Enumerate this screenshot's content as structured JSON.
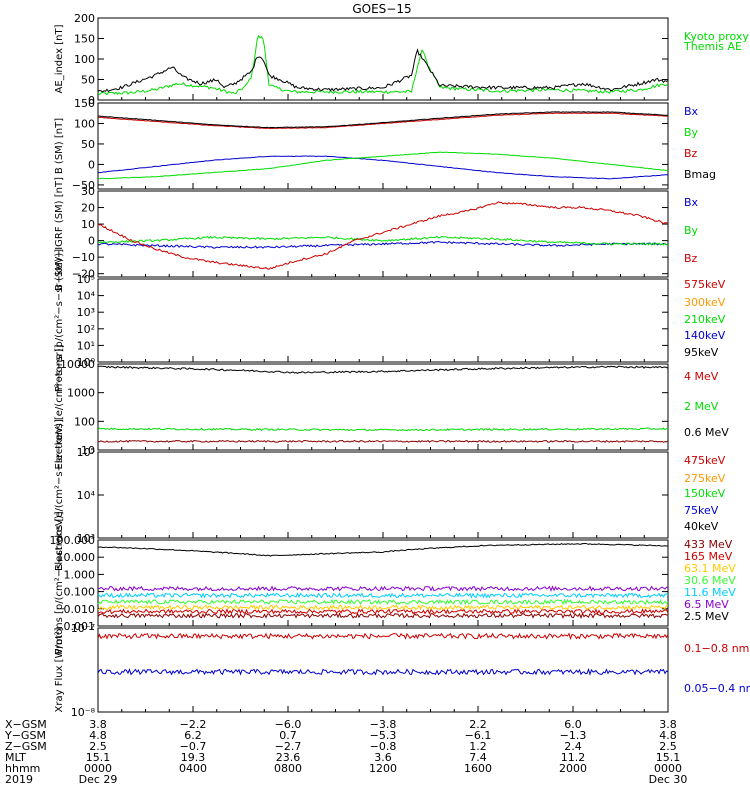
{
  "title": "GOES−15",
  "colors": {
    "black": "#000000",
    "red": "#cc0000",
    "green": "#00dd00",
    "blue": "#0000cc",
    "orange": "#ff9900",
    "cyan": "#00ccff",
    "purple": "#8800cc",
    "gold": "#ffcc00",
    "maroon": "#8b0000",
    "lime": "#33ff33"
  },
  "chart_data": [
    {
      "type": "line",
      "ylabel": "AE_index [nT]",
      "yticks": [
        "0",
        "50",
        "100",
        "150",
        "200"
      ],
      "ylim": [
        0,
        200
      ],
      "series": [
        {
          "name": "Kyoto proxy AE",
          "color": "#00dd00",
          "key": [
            [
              0,
              15
            ],
            [
              0.06,
              18
            ],
            [
              0.1,
              25
            ],
            [
              0.14,
              40
            ],
            [
              0.2,
              30
            ],
            [
              0.24,
              15
            ],
            [
              0.26,
              35
            ],
            [
              0.27,
              60
            ],
            [
              0.28,
              155
            ],
            [
              0.29,
              150
            ],
            [
              0.3,
              40
            ],
            [
              0.31,
              30
            ],
            [
              0.34,
              20
            ],
            [
              0.4,
              20
            ],
            [
              0.5,
              20
            ],
            [
              0.55,
              20
            ],
            [
              0.56,
              80
            ],
            [
              0.57,
              125
            ],
            [
              0.58,
              80
            ],
            [
              0.6,
              30
            ],
            [
              0.7,
              22
            ],
            [
              0.8,
              25
            ],
            [
              0.9,
              20
            ],
            [
              0.95,
              25
            ],
            [
              0.98,
              35
            ],
            [
              1,
              40
            ]
          ]
        },
        {
          "name": "Themis AE",
          "color": "#000000",
          "key": [
            [
              0,
              20
            ],
            [
              0.04,
              30
            ],
            [
              0.07,
              45
            ],
            [
              0.1,
              60
            ],
            [
              0.13,
              80
            ],
            [
              0.15,
              55
            ],
            [
              0.18,
              40
            ],
            [
              0.21,
              50
            ],
            [
              0.22,
              30
            ],
            [
              0.24,
              40
            ],
            [
              0.27,
              70
            ],
            [
              0.28,
              110
            ],
            [
              0.29,
              100
            ],
            [
              0.3,
              60
            ],
            [
              0.32,
              50
            ],
            [
              0.35,
              30
            ],
            [
              0.4,
              25
            ],
            [
              0.5,
              30
            ],
            [
              0.55,
              60
            ],
            [
              0.56,
              120
            ],
            [
              0.57,
              100
            ],
            [
              0.6,
              35
            ],
            [
              0.7,
              30
            ],
            [
              0.8,
              30
            ],
            [
              0.85,
              40
            ],
            [
              0.9,
              25
            ],
            [
              0.95,
              40
            ],
            [
              0.98,
              50
            ],
            [
              1,
              45
            ]
          ]
        }
      ],
      "legend": [
        "Kyoto proxy AE",
        "Themis AE"
      ]
    },
    {
      "type": "line",
      "ylabel": "B (SM) [nT]",
      "yticks": [
        "−50",
        "0",
        "50",
        "100",
        "150"
      ],
      "ylim": [
        -60,
        150
      ],
      "series": [
        {
          "name": "Bx",
          "color": "#0000cc",
          "key": [
            [
              0,
              -20
            ],
            [
              0.1,
              -5
            ],
            [
              0.2,
              10
            ],
            [
              0.3,
              20
            ],
            [
              0.4,
              20
            ],
            [
              0.5,
              10
            ],
            [
              0.6,
              -5
            ],
            [
              0.7,
              -20
            ],
            [
              0.8,
              -30
            ],
            [
              0.9,
              -35
            ],
            [
              1,
              -25
            ]
          ]
        },
        {
          "name": "By",
          "color": "#00dd00",
          "key": [
            [
              0,
              -35
            ],
            [
              0.1,
              -30
            ],
            [
              0.2,
              -20
            ],
            [
              0.3,
              -10
            ],
            [
              0.4,
              10
            ],
            [
              0.5,
              20
            ],
            [
              0.6,
              30
            ],
            [
              0.7,
              25
            ],
            [
              0.8,
              15
            ],
            [
              0.9,
              0
            ],
            [
              1,
              -15
            ]
          ]
        },
        {
          "name": "Bz",
          "color": "#cc0000",
          "key": [
            [
              0,
              115
            ],
            [
              0.1,
              105
            ],
            [
              0.2,
              95
            ],
            [
              0.3,
              88
            ],
            [
              0.4,
              90
            ],
            [
              0.5,
              100
            ],
            [
              0.6,
              110
            ],
            [
              0.7,
              120
            ],
            [
              0.8,
              125
            ],
            [
              0.9,
              125
            ],
            [
              1,
              118
            ]
          ]
        },
        {
          "name": "Bmag",
          "color": "#000000",
          "key": [
            [
              0,
              118
            ],
            [
              0.1,
              108
            ],
            [
              0.2,
              97
            ],
            [
              0.3,
              90
            ],
            [
              0.4,
              92
            ],
            [
              0.5,
              102
            ],
            [
              0.6,
              113
            ],
            [
              0.7,
              123
            ],
            [
              0.8,
              128
            ],
            [
              0.9,
              128
            ],
            [
              1,
              120
            ]
          ]
        }
      ],
      "legend": [
        "Bx",
        "By",
        "Bz",
        "Bmag"
      ]
    },
    {
      "type": "line",
      "ylabel": "B (SM)−IGRF (SM) [nT]",
      "yticks": [
        "−20",
        "−10",
        "0",
        "10",
        "20",
        "30"
      ],
      "ylim": [
        -22,
        30
      ],
      "series": [
        {
          "name": "Bx",
          "color": "#0000cc",
          "key": [
            [
              0,
              -2
            ],
            [
              0.1,
              -3
            ],
            [
              0.2,
              -4
            ],
            [
              0.3,
              -4
            ],
            [
              0.4,
              -3
            ],
            [
              0.5,
              -2
            ],
            [
              0.6,
              -1
            ],
            [
              0.7,
              -2
            ],
            [
              0.8,
              -3
            ],
            [
              0.9,
              -2
            ],
            [
              1,
              -2
            ]
          ]
        },
        {
          "name": "By",
          "color": "#00dd00",
          "key": [
            [
              0,
              -1
            ],
            [
              0.1,
              0
            ],
            [
              0.2,
              2
            ],
            [
              0.3,
              1
            ],
            [
              0.4,
              2
            ],
            [
              0.5,
              0
            ],
            [
              0.6,
              2
            ],
            [
              0.7,
              1
            ],
            [
              0.8,
              -1
            ],
            [
              0.9,
              -2
            ],
            [
              1,
              -2
            ]
          ]
        },
        {
          "name": "Bz",
          "color": "#cc0000",
          "key": [
            [
              0,
              10
            ],
            [
              0.06,
              0
            ],
            [
              0.1,
              -5
            ],
            [
              0.15,
              -10
            ],
            [
              0.2,
              -13
            ],
            [
              0.25,
              -15
            ],
            [
              0.3,
              -17
            ],
            [
              0.35,
              -12
            ],
            [
              0.4,
              -8
            ],
            [
              0.45,
              0
            ],
            [
              0.5,
              5
            ],
            [
              0.55,
              10
            ],
            [
              0.6,
              15
            ],
            [
              0.65,
              18
            ],
            [
              0.7,
              23
            ],
            [
              0.75,
              22
            ],
            [
              0.8,
              20
            ],
            [
              0.85,
              20
            ],
            [
              0.9,
              18
            ],
            [
              0.95,
              15
            ],
            [
              1,
              10
            ]
          ]
        }
      ],
      "legend": [
        "Bx",
        "By",
        "Bz"
      ]
    },
    {
      "type": "line",
      "ylabel": "Protons [p/(cm²−s−sr−keV)]",
      "ylog": [
        0,
        5
      ],
      "yticks": [
        "10⁰",
        "10¹",
        "10²",
        "10³",
        "10⁴",
        "10⁵"
      ],
      "series": [],
      "legend": [
        "575keV",
        "300keV",
        "210keV",
        "140keV",
        "95keV"
      ]
    },
    {
      "type": "line",
      "ylabel": "Electrons [e/(cm²−s−sr)]",
      "ylog": [
        1,
        4
      ],
      "yticks": [
        "10",
        "100",
        "1000",
        "10000"
      ],
      "series": [
        {
          "name": "4 MeV",
          "color": "#8b0000",
          "key": [
            [
              0,
              20
            ],
            [
              0.5,
              20
            ],
            [
              1,
              20
            ]
          ]
        },
        {
          "name": "2 MeV",
          "color": "#00dd00",
          "key": [
            [
              0,
              55
            ],
            [
              0.5,
              50
            ],
            [
              1,
              55
            ]
          ]
        },
        {
          "name": "0.6 MeV",
          "color": "#000000",
          "key": [
            [
              0,
              8000
            ],
            [
              0.2,
              6500
            ],
            [
              0.35,
              5000
            ],
            [
              0.5,
              5500
            ],
            [
              0.7,
              7000
            ],
            [
              0.9,
              8000
            ],
            [
              1,
              7500
            ]
          ]
        }
      ],
      "legend": [
        "4 MeV",
        "2 MeV",
        "0.6 MeV"
      ]
    },
    {
      "type": "line",
      "ylabel": "Electrons [e/(cm²−s−sr−keV)]",
      "ylog": [
        3,
        5
      ],
      "yticks": [
        "10³",
        "10⁴",
        "10⁵"
      ],
      "series": [],
      "legend": [
        "475keV",
        "275keV",
        "150keV",
        "75keV",
        "40keV"
      ]
    },
    {
      "type": "line",
      "ylabel": "Protons [p/(cm²−s−sr−keV)]",
      "ylog": [
        -3,
        2
      ],
      "yticks": [
        "0.001",
        "0.010",
        "0.100",
        "1.000",
        "10.000",
        "100.000"
      ],
      "series": [
        {
          "name": "433 MeV",
          "color": "#8b0000",
          "key": [
            [
              0,
              0.004
            ],
            [
              1,
              0.004
            ]
          ]
        },
        {
          "name": "165 MeV",
          "color": "#cc0000",
          "key": [
            [
              0,
              0.007
            ],
            [
              1,
              0.007
            ]
          ]
        },
        {
          "name": "63.1 MeV",
          "color": "#ffcc00",
          "key": [
            [
              0,
              0.012
            ],
            [
              1,
              0.012
            ]
          ]
        },
        {
          "name": "30.6 MeV",
          "color": "#33ff33",
          "key": [
            [
              0,
              0.025
            ],
            [
              1,
              0.025
            ]
          ]
        },
        {
          "name": "11.6 MeV",
          "color": "#00ccff",
          "key": [
            [
              0,
              0.06
            ],
            [
              1,
              0.06
            ]
          ]
        },
        {
          "name": "6.5 MeV",
          "color": "#8800cc",
          "key": [
            [
              0,
              0.15
            ],
            [
              1,
              0.15
            ]
          ]
        },
        {
          "name": "2.5 MeV",
          "color": "#000000",
          "key": [
            [
              0,
              40
            ],
            [
              0.2,
              20
            ],
            [
              0.3,
              12
            ],
            [
              0.5,
              20
            ],
            [
              0.7,
              50
            ],
            [
              0.85,
              60
            ],
            [
              1,
              45
            ]
          ]
        }
      ],
      "legend": [
        "433 MeV",
        "165 MeV",
        "63.1 MeV",
        "30.6 MeV",
        "11.6 MeV",
        "6.5 MeV",
        "2.5 MeV"
      ]
    },
    {
      "type": "line",
      "ylabel": "Xray Flux [W/m²]",
      "ylog": [
        -8,
        -7
      ],
      "yticks": [
        "10⁻⁸",
        "10⁻⁷"
      ],
      "series": [
        {
          "name": "0.1−0.8 nm",
          "color": "#cc0000",
          "key": [
            [
              0,
              8e-08
            ],
            [
              1,
              8e-08
            ]
          ]
        },
        {
          "name": "0.05−0.4 nm",
          "color": "#0000cc",
          "key": [
            [
              0,
              3e-08
            ],
            [
              1,
              3e-08
            ]
          ]
        }
      ],
      "legend": [
        "0.1−0.8 nm",
        "0.05−0.4 nm"
      ]
    }
  ],
  "xaxis": {
    "rows": [
      {
        "label": "X−GSM",
        "values": [
          "3.8",
          "−2.2",
          "−6.0",
          "−3.8",
          "2.2",
          "6.0",
          "3.8"
        ]
      },
      {
        "label": "Y−GSM",
        "values": [
          "4.8",
          "6.2",
          "0.7",
          "−5.3",
          "−6.1",
          "−1.3",
          "4.8"
        ]
      },
      {
        "label": "Z−GSM",
        "values": [
          "2.5",
          "−0.7",
          "−2.7",
          "−0.8",
          "1.2",
          "2.4",
          "2.5"
        ]
      },
      {
        "label": "MLT",
        "values": [
          "15.1",
          "19.3",
          "23.6",
          "3.6",
          "7.4",
          "11.2",
          "15.1"
        ]
      },
      {
        "label": "hhmm",
        "values": [
          "0000",
          "0400",
          "0800",
          "1200",
          "1600",
          "2000",
          "0000"
        ]
      },
      {
        "label": "2019",
        "values": [
          "Dec 29",
          "",
          "",
          "",
          "",
          "",
          "Dec 30"
        ]
      }
    ]
  }
}
